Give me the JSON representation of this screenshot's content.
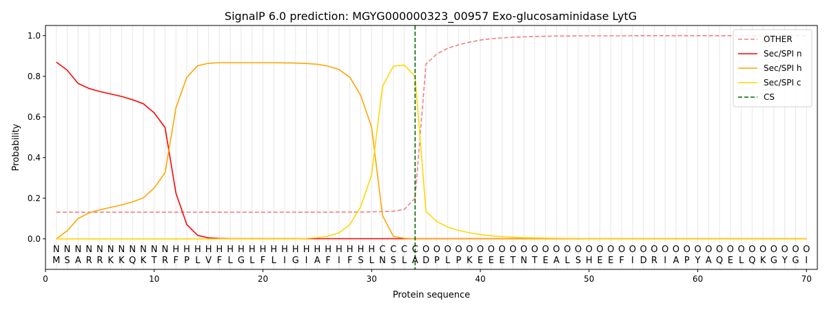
{
  "chart_data": {
    "type": "line",
    "title": "SignalP 6.0 prediction: MGYG000000323_00957 Exo-glucosaminidase LytG",
    "xlabel": "Protein sequence",
    "ylabel": "Probability",
    "xlim": [
      0,
      71
    ],
    "ylim": [
      -0.15,
      1.05
    ],
    "xticks": [
      0,
      10,
      20,
      30,
      40,
      50,
      60,
      70
    ],
    "yticks": [
      0.0,
      0.2,
      0.4,
      0.6,
      0.8,
      1.0
    ],
    "ytick_labels": [
      "0.0",
      "0.2",
      "0.4",
      "0.6",
      "0.8",
      "1.0"
    ],
    "vertical_grid_each_position": true,
    "legend_position": "top-right",
    "sequence": [
      "M",
      "S",
      "A",
      "R",
      "R",
      "K",
      "K",
      "Q",
      "K",
      "T",
      "R",
      "F",
      "P",
      "L",
      "V",
      "F",
      "L",
      "G",
      "L",
      "F",
      "L",
      "I",
      "G",
      "I",
      "A",
      "F",
      "I",
      "F",
      "S",
      "L",
      "N",
      "S",
      "L",
      "A",
      "D",
      "P",
      "L",
      "P",
      "K",
      "E",
      "E",
      "E",
      "T",
      "N",
      "T",
      "E",
      "A",
      "L",
      "S",
      "H",
      "E",
      "E",
      "F",
      "I",
      "D",
      "R",
      "I",
      "A",
      "P",
      "Y",
      "A",
      "Q",
      "E",
      "L",
      "Q",
      "K",
      "G",
      "Y",
      "G",
      "I"
    ],
    "labels": [
      "N",
      "N",
      "N",
      "N",
      "N",
      "N",
      "N",
      "N",
      "N",
      "N",
      "N",
      "H",
      "H",
      "H",
      "H",
      "H",
      "H",
      "H",
      "H",
      "H",
      "H",
      "H",
      "H",
      "H",
      "H",
      "H",
      "H",
      "H",
      "H",
      "H",
      "C",
      "C",
      "C",
      "C",
      "O",
      "O",
      "O",
      "O",
      "O",
      "O",
      "O",
      "O",
      "O",
      "O",
      "O",
      "O",
      "O",
      "O",
      "O",
      "O",
      "O",
      "O",
      "O",
      "O",
      "O",
      "O",
      "O",
      "O",
      "O",
      "O",
      "O",
      "O",
      "O",
      "O",
      "O",
      "O",
      "O",
      "O",
      "O",
      "O"
    ],
    "label_colors": {
      "N": "#ff0000",
      "H": "#ffa500",
      "C": "#ffd700",
      "O": "#808080"
    },
    "x": [
      1,
      2,
      3,
      4,
      5,
      6,
      7,
      8,
      9,
      10,
      11,
      12,
      13,
      14,
      15,
      16,
      17,
      18,
      19,
      20,
      21,
      22,
      23,
      24,
      25,
      26,
      27,
      28,
      29,
      30,
      31,
      32,
      33,
      34,
      35,
      36,
      37,
      38,
      39,
      40,
      41,
      42,
      43,
      44,
      45,
      46,
      47,
      48,
      49,
      50,
      51,
      52,
      53,
      54,
      55,
      56,
      57,
      58,
      59,
      60,
      61,
      62,
      63,
      64,
      65,
      66,
      67,
      68,
      69,
      70
    ],
    "series": [
      {
        "name": "OTHER",
        "color": "#f08080",
        "dash": true,
        "values": [
          0.131,
          0.131,
          0.131,
          0.131,
          0.131,
          0.131,
          0.131,
          0.131,
          0.131,
          0.131,
          0.131,
          0.131,
          0.131,
          0.131,
          0.131,
          0.131,
          0.131,
          0.131,
          0.131,
          0.131,
          0.131,
          0.131,
          0.131,
          0.131,
          0.131,
          0.131,
          0.132,
          0.132,
          0.132,
          0.133,
          0.134,
          0.136,
          0.145,
          0.2,
          0.86,
          0.91,
          0.938,
          0.955,
          0.968,
          0.978,
          0.985,
          0.989,
          0.992,
          0.994,
          0.996,
          0.997,
          0.998,
          0.998,
          0.999,
          0.999,
          0.999,
          0.999,
          0.999,
          1.0,
          1.0,
          1.0,
          1.0,
          1.0,
          1.0,
          1.0,
          1.0,
          1.0,
          1.0,
          1.0,
          1.0,
          1.0,
          1.0,
          1.0,
          1.0,
          1.0
        ]
      },
      {
        "name": "Sec/SPI n",
        "color": "#ff0000",
        "dash": false,
        "values": [
          0.87,
          0.83,
          0.765,
          0.74,
          0.725,
          0.713,
          0.701,
          0.685,
          0.665,
          0.62,
          0.548,
          0.225,
          0.07,
          0.017,
          0.005,
          0.002,
          0.001,
          0.001,
          0.001,
          0.001,
          0.001,
          0.001,
          0.001,
          0.001,
          0.001,
          0.001,
          0.001,
          0.001,
          0.001,
          0.001,
          0.001,
          0.001,
          0.001,
          0.001,
          0.001,
          0.001,
          0.001,
          0.001,
          0.001,
          0.001,
          0.001,
          0.001,
          0.001,
          0.001,
          0.001,
          0.001,
          0.001,
          0.001,
          0.001,
          0.001,
          0.001,
          0.001,
          0.001,
          0.001,
          0.001,
          0.001,
          0.001,
          0.001,
          0.001,
          0.001,
          0.001,
          0.001,
          0.001,
          0.001,
          0.001,
          0.001,
          0.001,
          0.001,
          0.001,
          0.001
        ]
      },
      {
        "name": "Sec/SPI h",
        "color": "#ffa500",
        "dash": false,
        "values": [
          0.0,
          0.04,
          0.1,
          0.128,
          0.143,
          0.155,
          0.167,
          0.182,
          0.202,
          0.25,
          0.325,
          0.645,
          0.795,
          0.852,
          0.864,
          0.867,
          0.867,
          0.867,
          0.867,
          0.867,
          0.867,
          0.866,
          0.865,
          0.863,
          0.859,
          0.85,
          0.833,
          0.795,
          0.705,
          0.55,
          0.115,
          0.012,
          0.003,
          0.001,
          0.001,
          0.001,
          0.001,
          0.001,
          0.001,
          0.001,
          0.001,
          0.001,
          0.001,
          0.001,
          0.001,
          0.001,
          0.001,
          0.001,
          0.001,
          0.001,
          0.001,
          0.001,
          0.001,
          0.001,
          0.001,
          0.001,
          0.001,
          0.001,
          0.001,
          0.001,
          0.001,
          0.001,
          0.001,
          0.001,
          0.001,
          0.001,
          0.001,
          0.001,
          0.001,
          0.001
        ]
      },
      {
        "name": "Sec/SPI c",
        "color": "#ffd700",
        "dash": false,
        "values": [
          0.0,
          0.0,
          0.0,
          0.0,
          0.0,
          0.0,
          0.0,
          0.0,
          0.0,
          0.0,
          0.0,
          0.0,
          0.0,
          0.0,
          0.0,
          0.0,
          0.0,
          0.0,
          0.0,
          0.0,
          0.0,
          0.0,
          0.0,
          0.002,
          0.006,
          0.013,
          0.03,
          0.07,
          0.16,
          0.315,
          0.75,
          0.85,
          0.855,
          0.8,
          0.135,
          0.085,
          0.058,
          0.042,
          0.03,
          0.021,
          0.015,
          0.011,
          0.008,
          0.006,
          0.005,
          0.004,
          0.003,
          0.002,
          0.002,
          0.001,
          0.001,
          0.001,
          0.001,
          0.001,
          0.001,
          0.001,
          0.001,
          0.001,
          0.001,
          0.001,
          0.001,
          0.001,
          0.001,
          0.001,
          0.001,
          0.001,
          0.001,
          0.001,
          0.001,
          0.001
        ]
      }
    ],
    "cs": {
      "name": "CS",
      "x": 34,
      "color": "#006400"
    }
  }
}
